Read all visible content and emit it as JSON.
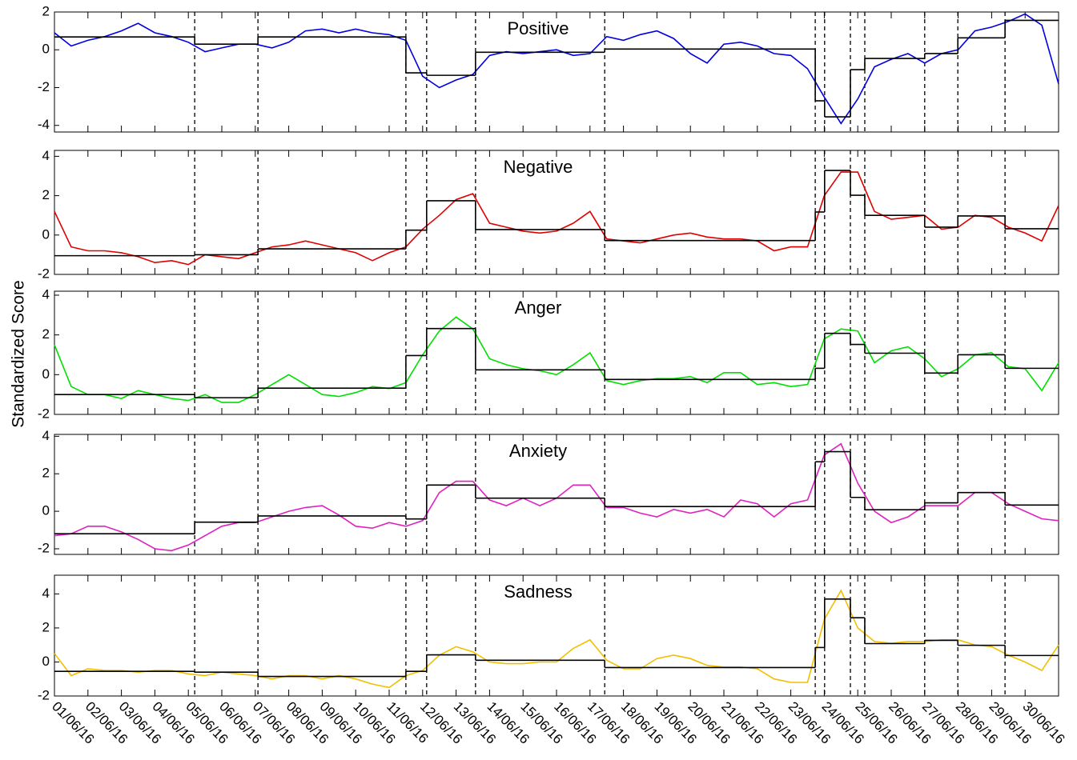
{
  "chart_data": [
    {
      "type": "line",
      "title": "Positive",
      "color": "#0000e0",
      "xlim": [
        1,
        31
      ],
      "ylim": [
        -4.35,
        2
      ],
      "yticks": [
        -4,
        -2,
        0,
        2
      ],
      "x": [
        1,
        1.5,
        2,
        2.5,
        3,
        3.5,
        4,
        4.5,
        5,
        5.5,
        6,
        6.5,
        7,
        7.5,
        8,
        8.5,
        9,
        9.5,
        10,
        10.5,
        11,
        11.5,
        12,
        12.5,
        13,
        13.5,
        14,
        14.5,
        15,
        15.5,
        16,
        16.5,
        17,
        17.5,
        18,
        18.5,
        19,
        19.5,
        20,
        20.5,
        21,
        21.5,
        22,
        22.5,
        23,
        23.5,
        24,
        24.5,
        25,
        25.5,
        26,
        26.5,
        27,
        27.5,
        28,
        28.5,
        29,
        29.5,
        30,
        30.5,
        31
      ],
      "values": [
        0.9,
        0.2,
        0.5,
        0.7,
        1.0,
        1.4,
        0.9,
        0.7,
        0.4,
        -0.1,
        0.1,
        0.3,
        0.3,
        0.1,
        0.4,
        1.0,
        1.1,
        0.9,
        1.1,
        0.9,
        0.8,
        0.5,
        -1.4,
        -2.0,
        -1.6,
        -1.3,
        -0.3,
        -0.1,
        -0.2,
        -0.1,
        0.0,
        -0.3,
        -0.2,
        0.7,
        0.5,
        0.8,
        1.0,
        0.6,
        -0.2,
        -0.7,
        0.3,
        0.4,
        0.2,
        -0.2,
        -0.3,
        -1.0,
        -2.5,
        -3.9,
        -2.6,
        -0.9,
        -0.5,
        -0.2,
        -0.7,
        -0.2,
        0.0,
        1.0,
        1.2,
        1.5,
        1.9,
        1.3,
        -1.8
      ],
      "changepoints": [
        5.19,
        7.08,
        11.5,
        12.12,
        13.58,
        17.44,
        23.73,
        24.01,
        24.78,
        25.21,
        27.0,
        27.99,
        29.4
      ],
      "levels": [
        0.68,
        0.3,
        0.68,
        -1.22,
        -1.35,
        -0.13,
        0.04,
        -2.7,
        -3.55,
        -1.05,
        -0.46,
        -0.2,
        0.63,
        1.56
      ]
    },
    {
      "type": "line",
      "title": "Negative",
      "color": "#e00000",
      "xlim": [
        1,
        31
      ],
      "ylim": [
        -2,
        4.3
      ],
      "yticks": [
        -2,
        0,
        2,
        4
      ],
      "x": [
        1,
        1.5,
        2,
        2.5,
        3,
        3.5,
        4,
        4.5,
        5,
        5.5,
        6,
        6.5,
        7,
        7.5,
        8,
        8.5,
        9,
        9.5,
        10,
        10.5,
        11,
        11.5,
        12,
        12.5,
        13,
        13.5,
        14,
        14.5,
        15,
        15.5,
        16,
        16.5,
        17,
        17.5,
        18,
        18.5,
        19,
        19.5,
        20,
        20.5,
        21,
        21.5,
        22,
        22.5,
        23,
        23.5,
        24,
        24.5,
        25,
        25.5,
        26,
        26.5,
        27,
        27.5,
        28,
        28.5,
        29,
        29.5,
        30,
        30.5,
        31
      ],
      "values": [
        1.2,
        -0.6,
        -0.8,
        -0.8,
        -0.9,
        -1.1,
        -1.4,
        -1.3,
        -1.5,
        -1.0,
        -1.1,
        -1.2,
        -0.9,
        -0.6,
        -0.5,
        -0.3,
        -0.5,
        -0.7,
        -0.9,
        -1.3,
        -0.9,
        -0.6,
        0.3,
        1.0,
        1.8,
        2.1,
        0.6,
        0.4,
        0.2,
        0.1,
        0.2,
        0.6,
        1.2,
        -0.2,
        -0.3,
        -0.4,
        -0.2,
        0.0,
        0.1,
        -0.1,
        -0.2,
        -0.2,
        -0.3,
        -0.8,
        -0.6,
        -0.6,
        2.0,
        3.2,
        3.2,
        1.2,
        0.8,
        0.9,
        1.0,
        0.3,
        0.4,
        1.0,
        0.9,
        0.4,
        0.1,
        -0.3,
        1.5
      ],
      "changepoints": [
        5.19,
        7.08,
        11.5,
        12.12,
        13.58,
        17.44,
        23.73,
        24.01,
        24.78,
        25.21,
        27.0,
        27.99,
        29.4
      ],
      "levels": [
        -1.05,
        -1.0,
        -0.7,
        0.25,
        1.74,
        0.28,
        -0.28,
        1.17,
        3.28,
        2.02,
        1.0,
        0.4,
        0.97,
        0.32
      ]
    },
    {
      "type": "line",
      "title": "Anger",
      "ylabel": "Standardized Score",
      "color": "#00e000",
      "xlim": [
        1,
        31
      ],
      "ylim": [
        -2,
        4.2
      ],
      "yticks": [
        -2,
        0,
        2,
        4
      ],
      "x": [
        1,
        1.5,
        2,
        2.5,
        3,
        3.5,
        4,
        4.5,
        5,
        5.5,
        6,
        6.5,
        7,
        7.5,
        8,
        8.5,
        9,
        9.5,
        10,
        10.5,
        11,
        11.5,
        12,
        12.5,
        13,
        13.5,
        14,
        14.5,
        15,
        15.5,
        16,
        16.5,
        17,
        17.5,
        18,
        18.5,
        19,
        19.5,
        20,
        20.5,
        21,
        21.5,
        22,
        22.5,
        23,
        23.5,
        24,
        24.5,
        25,
        25.5,
        26,
        26.5,
        27,
        27.5,
        28,
        28.5,
        29,
        29.5,
        30,
        30.5,
        31
      ],
      "values": [
        1.5,
        -0.6,
        -1.0,
        -1.0,
        -1.2,
        -0.8,
        -1.0,
        -1.2,
        -1.3,
        -1.0,
        -1.4,
        -1.4,
        -1.0,
        -0.5,
        0.0,
        -0.5,
        -1.0,
        -1.1,
        -0.9,
        -0.6,
        -0.7,
        -0.4,
        1.0,
        2.2,
        2.9,
        2.3,
        0.8,
        0.5,
        0.3,
        0.2,
        0.0,
        0.5,
        1.1,
        -0.3,
        -0.5,
        -0.3,
        -0.2,
        -0.2,
        -0.1,
        -0.4,
        0.1,
        0.1,
        -0.5,
        -0.4,
        -0.6,
        -0.5,
        1.8,
        2.3,
        2.2,
        0.6,
        1.2,
        1.4,
        0.8,
        -0.1,
        0.3,
        1.0,
        1.1,
        0.4,
        0.3,
        -0.8,
        0.6
      ],
      "changepoints": [
        5.19,
        7.08,
        11.5,
        12.12,
        13.58,
        17.44,
        23.73,
        24.01,
        24.78,
        25.21,
        27.0,
        27.99,
        29.4
      ],
      "levels": [
        -1.0,
        -1.16,
        -0.68,
        0.96,
        2.32,
        0.24,
        -0.24,
        0.32,
        2.08,
        1.52,
        1.08,
        0.08,
        1.0,
        0.32
      ]
    },
    {
      "type": "line",
      "title": "Anxiety",
      "color": "#e020c0",
      "xlim": [
        1,
        31
      ],
      "ylim": [
        -2.3,
        4.1
      ],
      "yticks": [
        -2,
        0,
        2,
        4
      ],
      "x": [
        1,
        1.5,
        2,
        2.5,
        3,
        3.5,
        4,
        4.5,
        5,
        5.5,
        6,
        6.5,
        7,
        7.5,
        8,
        8.5,
        9,
        9.5,
        10,
        10.5,
        11,
        11.5,
        12,
        12.5,
        13,
        13.5,
        14,
        14.5,
        15,
        15.5,
        16,
        16.5,
        17,
        17.5,
        18,
        18.5,
        19,
        19.5,
        20,
        20.5,
        21,
        21.5,
        22,
        22.5,
        23,
        23.5,
        24,
        24.5,
        25,
        25.5,
        26,
        26.5,
        27,
        27.5,
        28,
        28.5,
        29,
        29.5,
        30,
        30.5,
        31
      ],
      "values": [
        -1.3,
        -1.2,
        -0.8,
        -0.8,
        -1.1,
        -1.5,
        -2.0,
        -2.1,
        -1.8,
        -1.3,
        -0.8,
        -0.6,
        -0.6,
        -0.3,
        0.0,
        0.2,
        0.3,
        -0.2,
        -0.8,
        -0.9,
        -0.6,
        -0.8,
        -0.5,
        1.0,
        1.6,
        1.6,
        0.6,
        0.3,
        0.7,
        0.3,
        0.7,
        1.4,
        1.4,
        0.2,
        0.2,
        -0.1,
        -0.3,
        0.1,
        -0.1,
        0.1,
        -0.3,
        0.6,
        0.4,
        -0.3,
        0.4,
        0.6,
        3.0,
        3.6,
        1.5,
        0.0,
        -0.6,
        -0.3,
        0.3,
        0.3,
        0.3,
        1.0,
        1.0,
        0.4,
        0.0,
        -0.4,
        -0.5
      ],
      "changepoints": [
        5.19,
        7.08,
        11.5,
        12.12,
        13.58,
        17.44,
        23.73,
        24.01,
        24.78,
        25.21,
        27.0,
        27.99,
        29.4
      ],
      "levels": [
        -1.2,
        -0.58,
        -0.25,
        -0.41,
        1.4,
        0.7,
        0.25,
        2.64,
        3.18,
        0.74,
        0.08,
        0.45,
        1.0,
        0.33
      ]
    },
    {
      "type": "line",
      "title": "Sadness",
      "color": "#f0c000",
      "xlim": [
        1,
        31
      ],
      "ylim": [
        -2,
        5.1
      ],
      "yticks": [
        -2,
        0,
        2,
        4
      ],
      "x": [
        1,
        1.5,
        2,
        2.5,
        3,
        3.5,
        4,
        4.5,
        5,
        5.5,
        6,
        6.5,
        7,
        7.5,
        8,
        8.5,
        9,
        9.5,
        10,
        10.5,
        11,
        11.5,
        12,
        12.5,
        13,
        13.5,
        14,
        14.5,
        15,
        15.5,
        16,
        16.5,
        17,
        17.5,
        18,
        18.5,
        19,
        19.5,
        20,
        20.5,
        21,
        21.5,
        22,
        22.5,
        23,
        23.5,
        24,
        24.5,
        25,
        25.5,
        26,
        26.5,
        27,
        27.5,
        28,
        28.5,
        29,
        29.5,
        30,
        30.5,
        31
      ],
      "values": [
        0.5,
        -0.8,
        -0.4,
        -0.5,
        -0.5,
        -0.6,
        -0.5,
        -0.5,
        -0.7,
        -0.8,
        -0.6,
        -0.7,
        -0.8,
        -1.0,
        -0.8,
        -0.8,
        -1.0,
        -0.8,
        -1.0,
        -1.3,
        -1.5,
        -0.8,
        -0.5,
        0.4,
        0.9,
        0.6,
        0.0,
        -0.1,
        -0.1,
        0.0,
        0.0,
        0.8,
        1.3,
        0.1,
        -0.4,
        -0.4,
        0.2,
        0.4,
        0.2,
        -0.2,
        -0.3,
        -0.3,
        -0.4,
        -1.0,
        -1.2,
        -1.2,
        2.5,
        4.2,
        2.0,
        1.2,
        1.1,
        1.2,
        1.2,
        1.3,
        1.3,
        1.0,
        0.9,
        0.4,
        0.0,
        -0.5,
        1.0
      ],
      "changepoints": [
        5.19,
        7.08,
        11.5,
        12.12,
        13.58,
        17.44,
        23.73,
        24.01,
        24.78,
        25.21,
        27.0,
        27.99,
        29.4
      ],
      "levels": [
        -0.55,
        -0.6,
        -0.85,
        -0.55,
        0.42,
        0.1,
        -0.33,
        0.85,
        3.7,
        2.6,
        1.08,
        1.27,
        0.98,
        0.38
      ],
      "xticks": [
        {
          "value": 1,
          "label": "01/06/16"
        },
        {
          "value": 2,
          "label": "02/06/16"
        },
        {
          "value": 3,
          "label": "03/06/16"
        },
        {
          "value": 4,
          "label": "04/06/16"
        },
        {
          "value": 5,
          "label": "05/06/16"
        },
        {
          "value": 6,
          "label": "06/06/16"
        },
        {
          "value": 7,
          "label": "07/06/16"
        },
        {
          "value": 8,
          "label": "08/06/16"
        },
        {
          "value": 9,
          "label": "09/06/16"
        },
        {
          "value": 10,
          "label": "10/06/16"
        },
        {
          "value": 11,
          "label": "11/06/16"
        },
        {
          "value": 12,
          "label": "12/06/16"
        },
        {
          "value": 13,
          "label": "13/06/16"
        },
        {
          "value": 14,
          "label": "14/06/16"
        },
        {
          "value": 15,
          "label": "15/06/16"
        },
        {
          "value": 16,
          "label": "16/06/16"
        },
        {
          "value": 17,
          "label": "17/06/16"
        },
        {
          "value": 18,
          "label": "18/06/16"
        },
        {
          "value": 19,
          "label": "19/06/16"
        },
        {
          "value": 20,
          "label": "20/06/16"
        },
        {
          "value": 21,
          "label": "21/06/16"
        },
        {
          "value": 22,
          "label": "22/06/16"
        },
        {
          "value": 23,
          "label": "23/06/16"
        },
        {
          "value": 24,
          "label": "24/06/16"
        },
        {
          "value": 25,
          "label": "25/06/16"
        },
        {
          "value": 26,
          "label": "26/06/16"
        },
        {
          "value": 27,
          "label": "27/06/16"
        },
        {
          "value": 28,
          "label": "28/06/16"
        },
        {
          "value": 29,
          "label": "29/06/16"
        },
        {
          "value": 30,
          "label": "30/06/16"
        }
      ]
    }
  ]
}
